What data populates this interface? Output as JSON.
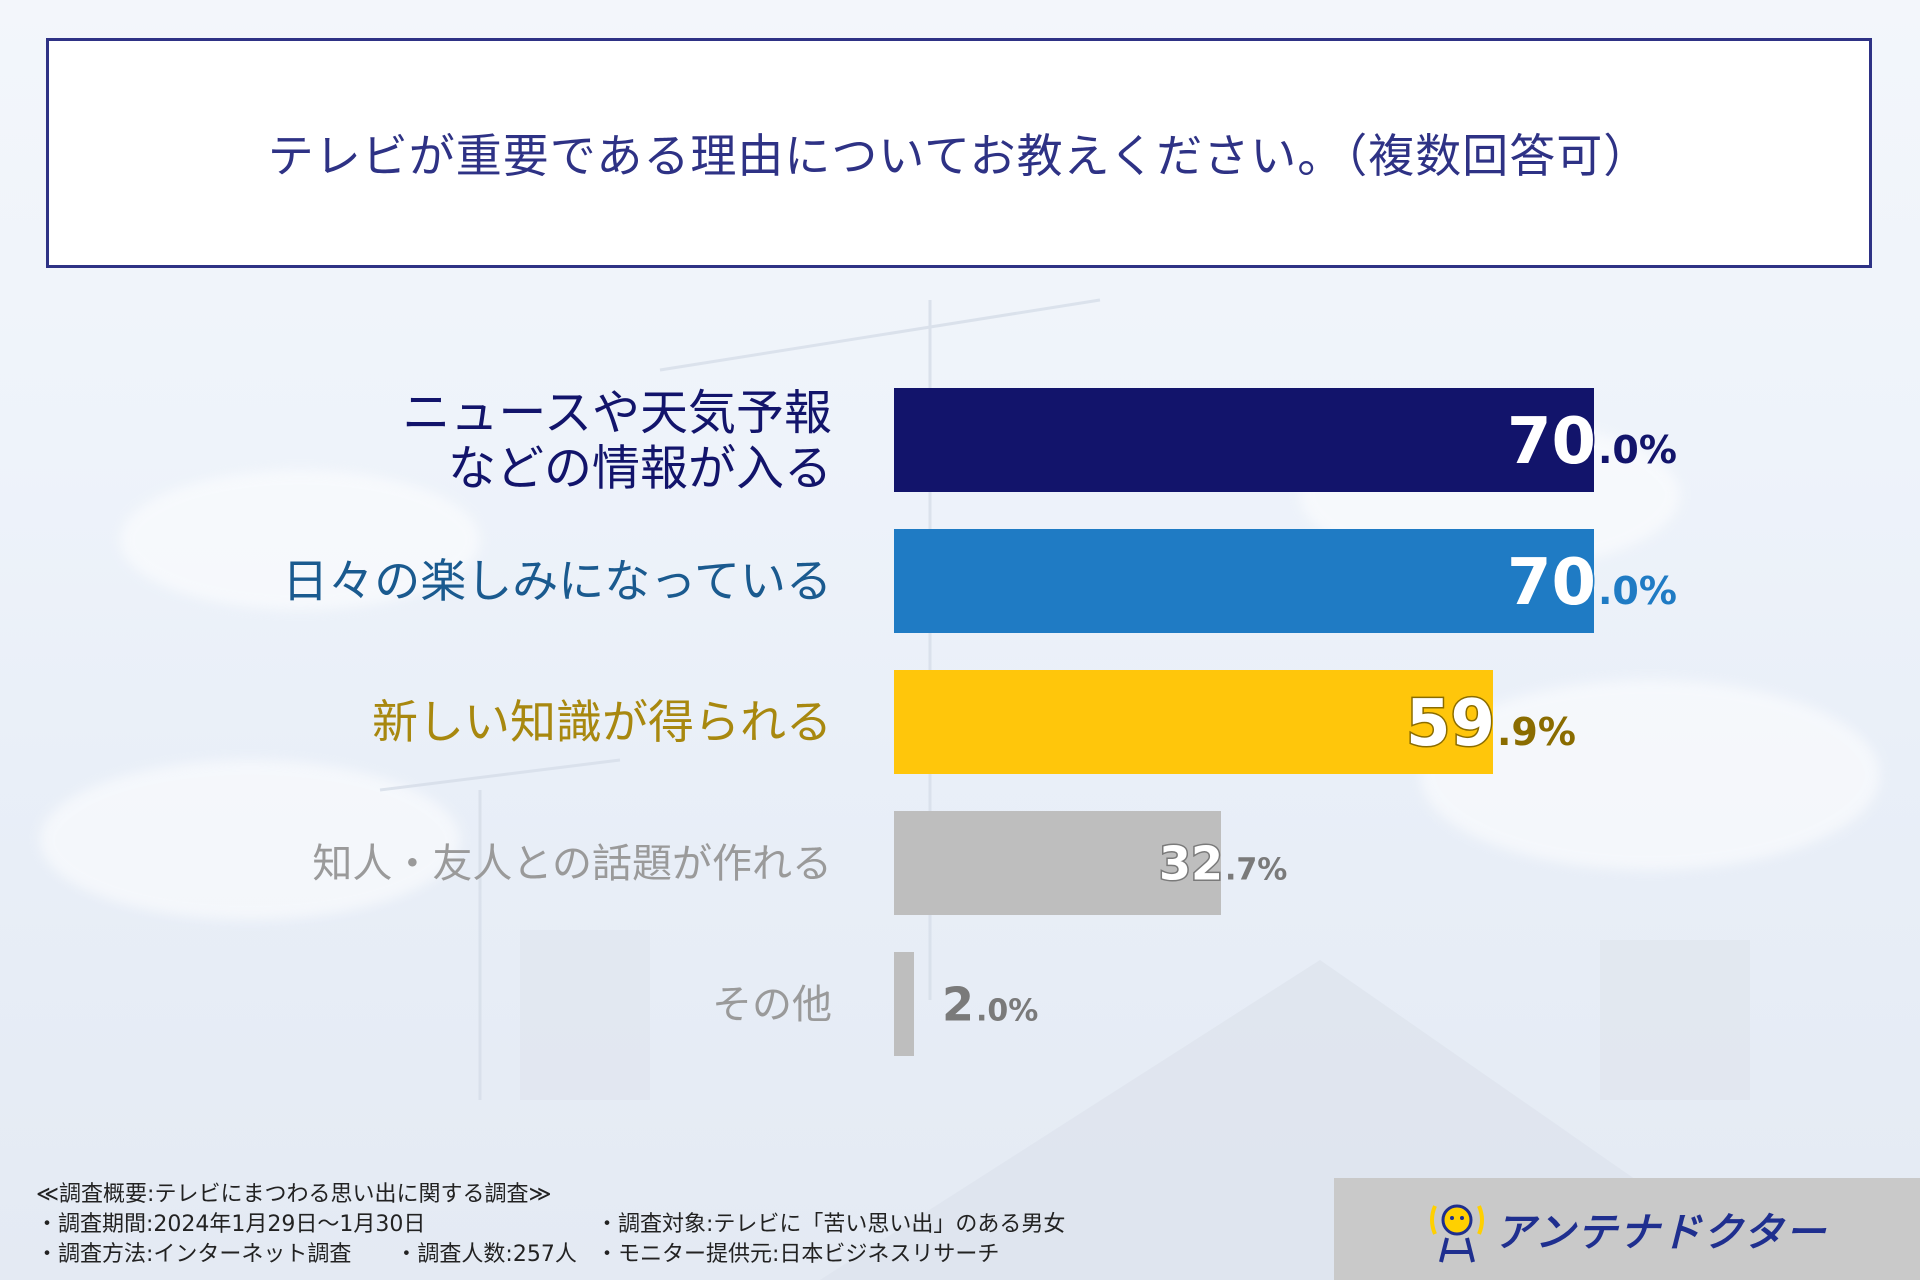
{
  "title": "テレビが重要である理由についてお教えください。（複数回答可）",
  "chart_data": {
    "type": "bar",
    "orientation": "horizontal",
    "title": "テレビが重要である理由についてお教えください。（複数回答可）",
    "categories": [
      "ニュースや天気予報などの情報が入る",
      "日々の楽しみになっている",
      "新しい知識が得られる",
      "知人・友人との話題が作れる",
      "その他"
    ],
    "category_lines": [
      [
        "ニュースや天気予報",
        "などの情報が入る"
      ],
      [
        "日々の楽しみになっている"
      ],
      [
        "新しい知識が得られる"
      ],
      [
        "知人・友人との話題が作れる"
      ],
      [
        "その他"
      ]
    ],
    "values": [
      70.0,
      70.0,
      59.9,
      32.7,
      2.0
    ],
    "value_labels": [
      {
        "int": "70",
        "dec": ".0%"
      },
      {
        "int": "70",
        "dec": ".0%"
      },
      {
        "int": "59",
        "dec": ".9%"
      },
      {
        "int": "32",
        "dec": ".7%"
      },
      {
        "int": "2",
        "dec": ".0%"
      }
    ],
    "bar_colors": [
      "#12146b",
      "#1f7bc4",
      "#ffc60b",
      "#bebebe",
      "#bebebe"
    ],
    "label_colors": [
      "#12146b",
      "#1a5a8f",
      "#a8880f",
      "#9a9a9a",
      "#9a9a9a"
    ],
    "xlim": [
      0,
      100
    ],
    "grid": false,
    "legend": "none"
  },
  "footer": {
    "heading": "≪調査概要:テレビにまつわる思い出に関する調査≫",
    "period": "・調査期間:2024年1月29日〜1月30日",
    "method": "・調査方法:インターネット調査",
    "count": "・調査人数:257人",
    "target": "・調査対象:テレビに「苦い思い出」のある男女",
    "monitor": "・モニター提供元:日本ビジネスリサーチ"
  },
  "logo": {
    "text": "アンテナドクター",
    "icon": "antenna-icon"
  }
}
